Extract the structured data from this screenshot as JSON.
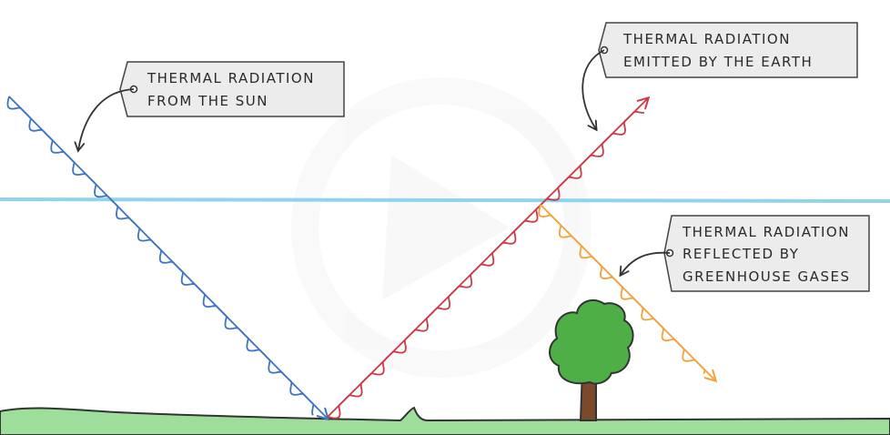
{
  "labels": {
    "sun": [
      "THERMAL  RADIATION",
      "FROM  THE  SUN"
    ],
    "earth": [
      "THERMAL  RADIATION",
      "EMITTED  BY  THE  EARTH"
    ],
    "greenhouse": [
      "THERMAL  RADIATION",
      "REFLECTED  BY",
      "GREENHOUSE  GASES"
    ]
  },
  "colors": {
    "sun_ray": "#3f73c4",
    "earth_ray": "#cc3b45",
    "reflected_ray": "#f2a23a",
    "atmosphere": "#8fd3ec",
    "ground": "#9ddf9a",
    "tree_foliage": "#4daf46",
    "tree_trunk": "#7a4a2a",
    "tag_fill": "#ececec",
    "tag_stroke": "#444444"
  }
}
